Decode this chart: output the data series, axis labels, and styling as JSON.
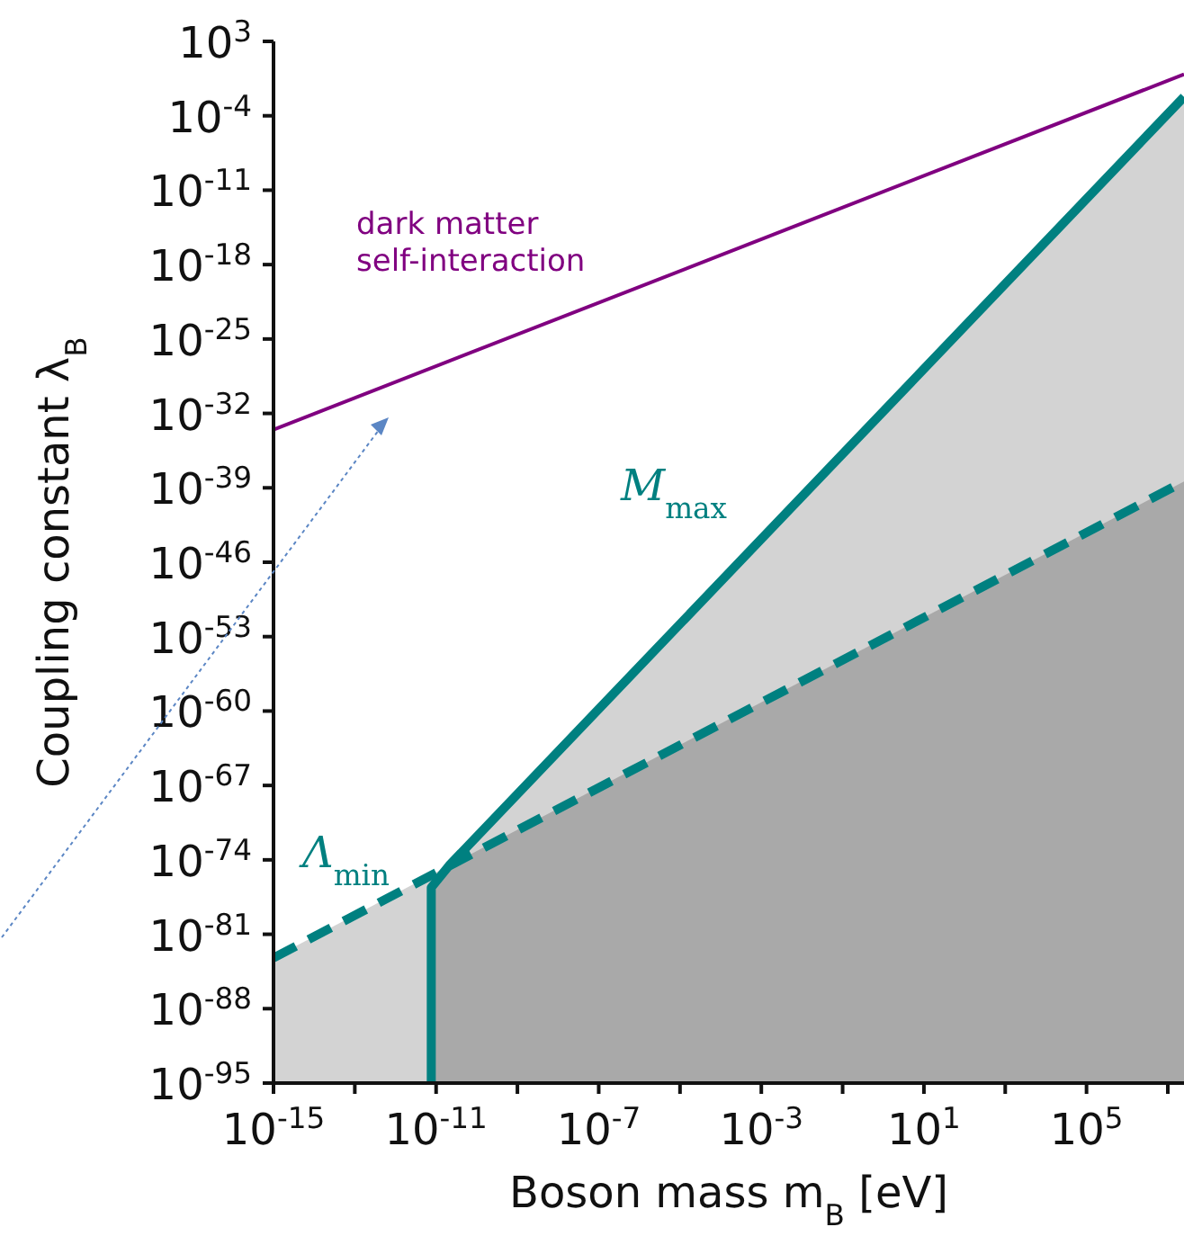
{
  "chart_data": {
    "type": "line",
    "xlabel": "Boson mass m$_{B}$ [eV]",
    "ylabel": "Coupling constant λ$_{B}$",
    "log": "xy",
    "marker": "none",
    "xlim": [
      1e-15,
      25000000.0
    ],
    "ylim": [
      1e-95,
      1000
    ],
    "xticks": [
      {
        "value": 1e-15,
        "label": "10$^{-15}$"
      },
      {
        "value": 1e-13,
        "label": null
      },
      {
        "value": 1e-11,
        "label": "10$^{-11}$"
      },
      {
        "value": 1e-09,
        "label": null
      },
      {
        "value": 1e-07,
        "label": "10$^{-7}$"
      },
      {
        "value": 1e-05,
        "label": null
      },
      {
        "value": 0.001,
        "label": "10$^{-3}$"
      },
      {
        "value": 0.1,
        "label": null
      },
      {
        "value": 10,
        "label": "10$^{1}$"
      },
      {
        "value": 1000,
        "label": null
      },
      {
        "value": 100000,
        "label": "10$^{5}$"
      },
      {
        "value": 10000000,
        "label": null
      }
    ],
    "yticks": [
      {
        "value": 1e-95,
        "label": "10$^{-95}$"
      },
      {
        "value": 1e-88,
        "label": "10$^{-88}$"
      },
      {
        "value": 1e-81,
        "label": "10$^{-81}$"
      },
      {
        "value": 1e-74,
        "label": "10$^{-74}$"
      },
      {
        "value": 1e-67,
        "label": "10$^{-67}$"
      },
      {
        "value": 1e-60,
        "label": "10$^{-60}$"
      },
      {
        "value": 1e-53,
        "label": "10$^{-53}$"
      },
      {
        "value": 1e-46,
        "label": "10$^{-46}$"
      },
      {
        "value": 1e-39,
        "label": "10$^{-39}$"
      },
      {
        "value": 1e-32,
        "label": "10$^{-32}$"
      },
      {
        "value": 1e-25,
        "label": "10$^{-25}$"
      },
      {
        "value": 1e-18,
        "label": "10$^{-18}$"
      },
      {
        "value": 1e-11,
        "label": "10$^{-11}$"
      },
      {
        "value": 0.0001,
        "label": "10$^{-4}$"
      },
      {
        "value": 1000,
        "label": "10$^{3}$"
      }
    ],
    "series": [
      {
        "type": "area",
        "color": "#d3d3d3",
        "x": [
          1e-15,
          2.1e-11,
          25000000.0
        ],
        "values": [
          6e-84,
          3e-75,
          0.006
        ]
      },
      {
        "type": "area",
        "color": "#a9a9a9",
        "x": [
          7.6e-12,
          2.1e-11,
          25000000.0
        ],
        "values": [
          2.5e-77,
          3e-75,
          4e-39
        ]
      },
      {
        "name": "M$_{max}$",
        "color": "#008080",
        "line_style": "solid",
        "x": [
          7.6e-12,
          7.6e-12,
          2.1e-11,
          25000000.0
        ],
        "values": [
          1e-95,
          2.5e-77,
          3e-75,
          0.006
        ]
      },
      {
        "name": "Λ$_{min}$",
        "color": "#008080",
        "line_style": "dashed",
        "x": [
          1e-15,
          25000000.0
        ],
        "values": [
          6e-84,
          4e-39
        ]
      },
      {
        "name": "dark matter self-interaction",
        "color": "#800080",
        "line_style": "solid",
        "x": [
          1e-15,
          25000000.0
        ],
        "values": [
          3e-34,
          0.8
        ]
      }
    ]
  }
}
